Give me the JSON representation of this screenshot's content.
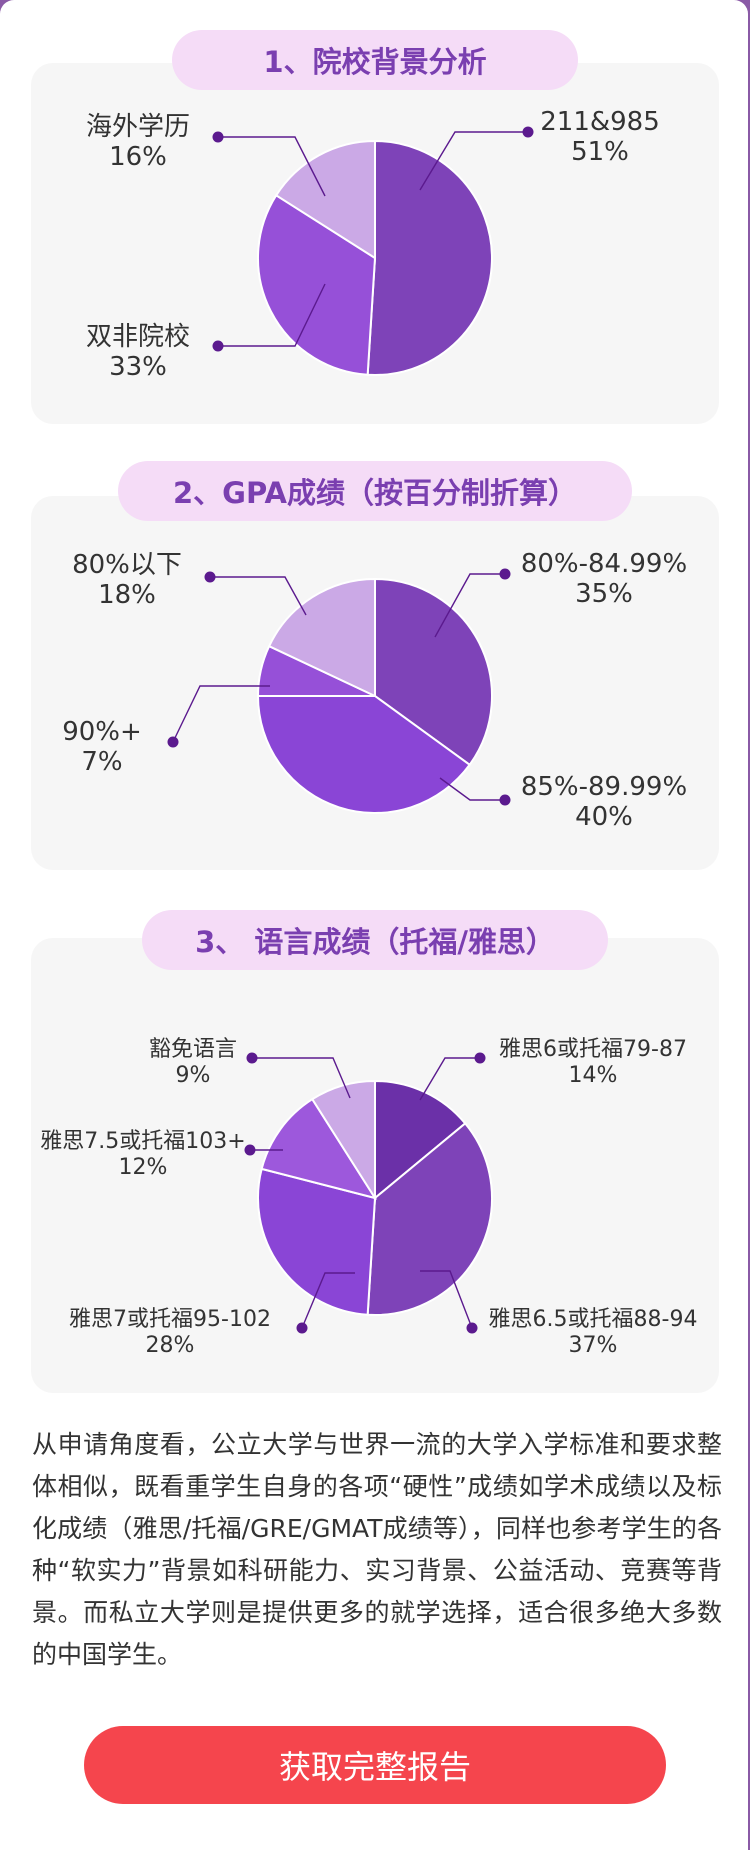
{
  "chart_data": [
    {
      "type": "pie",
      "title": "1、院校背景分析",
      "slices": [
        {
          "label": "211&985",
          "value": 51,
          "value_label": "51%",
          "color": "#7e43b8"
        },
        {
          "label": "双非院校",
          "value": 33,
          "value_label": "33%",
          "color": "#9650d8"
        },
        {
          "label": "海外学历",
          "value": 16,
          "value_label": "16%",
          "color": "#cba9e6"
        }
      ]
    },
    {
      "type": "pie",
      "title": "2、GPA成绩（按百分制折算）",
      "slices": [
        {
          "label": "80%-84.99%",
          "value": 35,
          "value_label": "35%",
          "color": "#7e43b8"
        },
        {
          "label": "85%-89.99%",
          "value": 40,
          "value_label": "40%",
          "color": "#8a45d6"
        },
        {
          "label": "90%+",
          "value": 7,
          "value_label": "7%",
          "color": "#9650d8"
        },
        {
          "label": "80%以下",
          "value": 18,
          "value_label": "18%",
          "color": "#cba9e6"
        }
      ]
    },
    {
      "type": "pie",
      "title": "3、 语言成绩（托福/雅思）",
      "slices": [
        {
          "label": "雅思6或托福79-87",
          "value": 14,
          "value_label": "14%",
          "color": "#6b30a8"
        },
        {
          "label": "雅思6.5或托福88-94",
          "value": 37,
          "value_label": "37%",
          "color": "#7e43b8"
        },
        {
          "label": "雅思7或托福95-102",
          "value": 28,
          "value_label": "28%",
          "color": "#8a45d6"
        },
        {
          "label": "雅思7.5或托福103+",
          "value": 12,
          "value_label": "12%",
          "color": "#9d58dc"
        },
        {
          "label": "豁免语言",
          "value": 9,
          "value_label": "9%",
          "color": "#cba9e6"
        }
      ]
    }
  ],
  "accent_color": "#7a3fb0",
  "paragraph": "从申请角度看，公立大学与世界一流的大学入学标准和要求整体相似，既看重学生自身的各项“硬性”成绩如学术成绩以及标化成绩（雅思/托福/GRE/GMAT成绩等），同样也参考学生的各种“软实力”背景如科研能力、实习背景、公益活动、竞赛等背景。而私立大学则是提供更多的就学选择，适合很多绝大多数的中国学生。",
  "cta_label": "获取完整报告"
}
